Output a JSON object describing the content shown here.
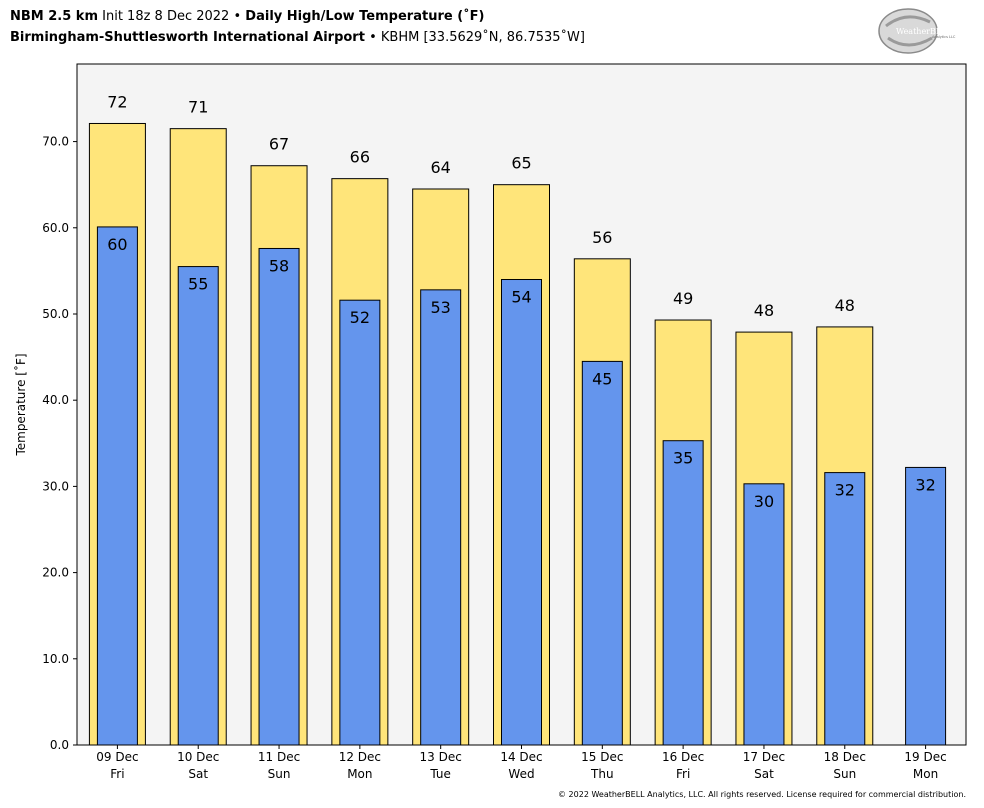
{
  "header": {
    "line1": {
      "model": "NBM 2.5 km",
      "init": "Init 18z 8 Dec 2022",
      "sep": "•",
      "product": "Daily High/Low Temperature (˚F)"
    },
    "line2": {
      "station_name": "Birmingham-Shuttlesworth International Airport",
      "sep": "•",
      "station_info": "KBHM [33.5629˚N, 86.7535˚W]"
    }
  },
  "logo": {
    "text_main": "WeatherBELL",
    "text_sub": "Analytics LLC"
  },
  "footer": {
    "copyright": "© 2022 WeatherBELL Analytics, LLC. All rights reserved. License required for commercial distribution."
  },
  "colors": {
    "high": "#FFE57A",
    "low": "#6495ED",
    "plot_bg": "#F4F4F4",
    "outline": "#000000"
  },
  "chart_data": {
    "type": "bar",
    "ylabel": "Temperature [˚F]",
    "ylim": [
      0,
      79
    ],
    "yticks": [
      0,
      10,
      20,
      30,
      40,
      50,
      60,
      70
    ],
    "ytick_labels": [
      "0.0",
      "10.0",
      "20.0",
      "30.0",
      "40.0",
      "50.0",
      "60.0",
      "70.0"
    ],
    "grid": false,
    "categories": [
      {
        "date": "09 Dec",
        "day": "Fri"
      },
      {
        "date": "10 Dec",
        "day": "Sat"
      },
      {
        "date": "11 Dec",
        "day": "Sun"
      },
      {
        "date": "12 Dec",
        "day": "Mon"
      },
      {
        "date": "13 Dec",
        "day": "Tue"
      },
      {
        "date": "14 Dec",
        "day": "Wed"
      },
      {
        "date": "15 Dec",
        "day": "Thu"
      },
      {
        "date": "16 Dec",
        "day": "Fri"
      },
      {
        "date": "17 Dec",
        "day": "Sat"
      },
      {
        "date": "18 Dec",
        "day": "Sun"
      },
      {
        "date": "19 Dec",
        "day": "Mon"
      }
    ],
    "series": [
      {
        "values": [
          72.1,
          71.5,
          67.2,
          65.7,
          64.5,
          65.0,
          56.4,
          49.3,
          47.9,
          48.5,
          null
        ],
        "labels": [
          "72",
          "71",
          "67",
          "66",
          "64",
          "65",
          "56",
          "49",
          "48",
          "48",
          null
        ]
      },
      {
        "values": [
          60.1,
          55.5,
          57.6,
          51.6,
          52.8,
          54.0,
          44.5,
          35.3,
          30.3,
          31.6,
          32.2
        ],
        "labels": [
          "60",
          "55",
          "58",
          "52",
          "53",
          "54",
          "45",
          "35",
          "30",
          "32",
          "32"
        ]
      }
    ]
  }
}
